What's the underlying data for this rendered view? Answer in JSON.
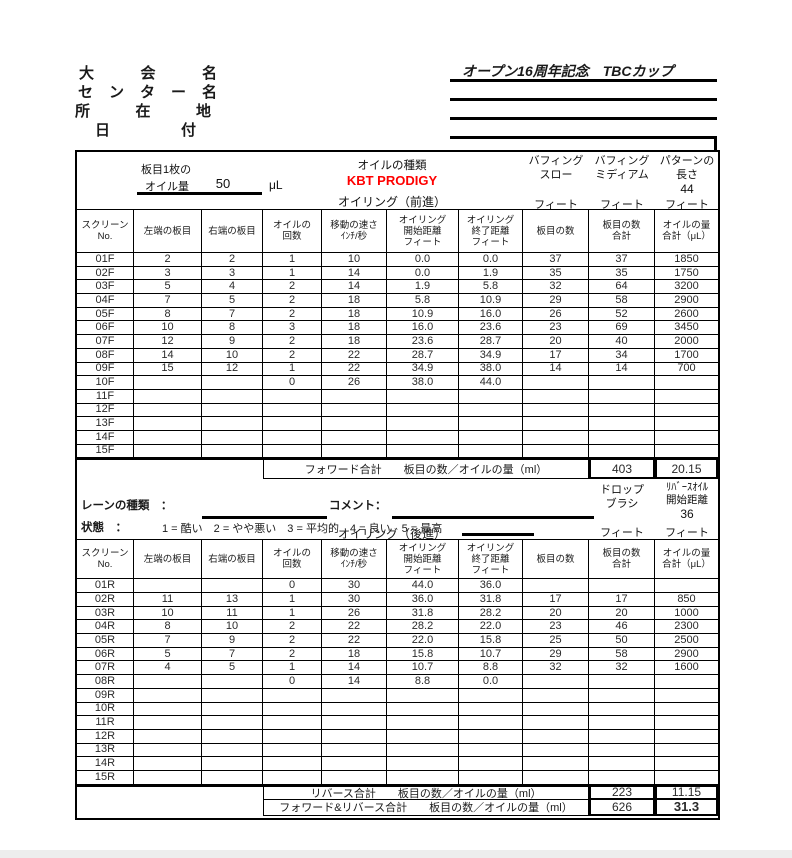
{
  "header": {
    "fields": [
      {
        "label": "大 会 名",
        "value": "オープン16周年記念　TBCカップ"
      },
      {
        "label": "セ ン タ ー 名",
        "value": ""
      },
      {
        "label": "所 在 地",
        "value": ""
      },
      {
        "label": "日 付",
        "value": ""
      }
    ]
  },
  "sheet": {
    "board_oil": {
      "line1": "板目1枚の",
      "line2": "オイル量",
      "value": "50",
      "unit": "μL"
    },
    "oil_type_label": "オイルの種類",
    "oil_type_value": "KBT PRODIGY",
    "forward_title": "オイリング（前進）",
    "reverse_title": "オイリング（後進）",
    "buffing": [
      {
        "title": "バフィング\nスロー",
        "value": "",
        "unit": "フィート"
      },
      {
        "title": "バフィング\nミディアム",
        "value": "",
        "unit": "フィート"
      },
      {
        "title": "パターンの\n長さ",
        "value": "44",
        "unit": "フィート"
      }
    ],
    "columns": [
      "スクリーン\nNo.",
      "左端の板目",
      "右端の板目",
      "オイルの\n回数",
      "移動の速さ\nｲﾝﾁ/秒",
      "オイリング\n開始距離\nフィート",
      "オイリング\n終了距離\nフィート",
      "板目の数",
      "板目の数\n合計",
      "オイルの量\n合計（μL）"
    ],
    "forward_rows": [
      [
        "01F",
        "2",
        "2",
        "1",
        "10",
        "0.0",
        "0.0",
        "37",
        "37",
        "1850"
      ],
      [
        "02F",
        "3",
        "3",
        "1",
        "14",
        "0.0",
        "1.9",
        "35",
        "35",
        "1750"
      ],
      [
        "03F",
        "5",
        "4",
        "2",
        "14",
        "1.9",
        "5.8",
        "32",
        "64",
        "3200"
      ],
      [
        "04F",
        "7",
        "5",
        "2",
        "18",
        "5.8",
        "10.9",
        "29",
        "58",
        "2900"
      ],
      [
        "05F",
        "8",
        "7",
        "2",
        "18",
        "10.9",
        "16.0",
        "26",
        "52",
        "2600"
      ],
      [
        "06F",
        "10",
        "8",
        "3",
        "18",
        "16.0",
        "23.6",
        "23",
        "69",
        "3450"
      ],
      [
        "07F",
        "12",
        "9",
        "2",
        "18",
        "23.6",
        "28.7",
        "20",
        "40",
        "2000"
      ],
      [
        "08F",
        "14",
        "10",
        "2",
        "22",
        "28.7",
        "34.9",
        "17",
        "34",
        "1700"
      ],
      [
        "09F",
        "15",
        "12",
        "1",
        "22",
        "34.9",
        "38.0",
        "14",
        "14",
        "700"
      ],
      [
        "10F",
        "",
        "",
        "0",
        "26",
        "38.0",
        "44.0",
        "",
        "",
        ""
      ],
      [
        "11F",
        "",
        "",
        "",
        "",
        "",
        "",
        "",
        "",
        ""
      ],
      [
        "12F",
        "",
        "",
        "",
        "",
        "",
        "",
        "",
        "",
        ""
      ],
      [
        "13F",
        "",
        "",
        "",
        "",
        "",
        "",
        "",
        "",
        ""
      ],
      [
        "14F",
        "",
        "",
        "",
        "",
        "",
        "",
        "",
        "",
        ""
      ],
      [
        "15F",
        "",
        "",
        "",
        "",
        "",
        "",
        "",
        "",
        ""
      ]
    ],
    "reverse_rows": [
      [
        "01R",
        "",
        "",
        "0",
        "30",
        "44.0",
        "36.0",
        "",
        "",
        ""
      ],
      [
        "02R",
        "11",
        "13",
        "1",
        "30",
        "36.0",
        "31.8",
        "17",
        "17",
        "850"
      ],
      [
        "03R",
        "10",
        "11",
        "1",
        "26",
        "31.8",
        "28.2",
        "20",
        "20",
        "1000"
      ],
      [
        "04R",
        "8",
        "10",
        "2",
        "22",
        "28.2",
        "22.0",
        "23",
        "46",
        "2300"
      ],
      [
        "05R",
        "7",
        "9",
        "2",
        "22",
        "22.0",
        "15.8",
        "25",
        "50",
        "2500"
      ],
      [
        "06R",
        "5",
        "7",
        "2",
        "18",
        "15.8",
        "10.7",
        "29",
        "58",
        "2900"
      ],
      [
        "07R",
        "4",
        "5",
        "1",
        "14",
        "10.7",
        "8.8",
        "32",
        "32",
        "1600"
      ],
      [
        "08R",
        "",
        "",
        "0",
        "14",
        "8.8",
        "0.0",
        "",
        "",
        ""
      ],
      [
        "09R",
        "",
        "",
        "",
        "",
        "",
        "",
        "",
        "",
        ""
      ],
      [
        "10R",
        "",
        "",
        "",
        "",
        "",
        "",
        "",
        "",
        ""
      ],
      [
        "11R",
        "",
        "",
        "",
        "",
        "",
        "",
        "",
        "",
        ""
      ],
      [
        "12R",
        "",
        "",
        "",
        "",
        "",
        "",
        "",
        "",
        ""
      ],
      [
        "13R",
        "",
        "",
        "",
        "",
        "",
        "",
        "",
        "",
        ""
      ],
      [
        "14R",
        "",
        "",
        "",
        "",
        "",
        "",
        "",
        "",
        ""
      ],
      [
        "15R",
        "",
        "",
        "",
        "",
        "",
        "",
        "",
        "",
        ""
      ]
    ],
    "forward_total": {
      "label": "フォワード合計　　板目の数／オイルの量（ml）",
      "boards": "403",
      "oil": "20.15"
    },
    "reverse_total": {
      "label": "リバース合計　　板目の数／オイルの量（ml）",
      "boards": "223",
      "oil": "11.15"
    },
    "grand_total": {
      "label": "フォワード&リバース合計　　板目の数／オイルの量（ml）",
      "boards": "626",
      "oil": "31.3"
    },
    "middle": {
      "lane_type_label": "レーンの種類　：",
      "comment_label": "コメント：",
      "condition_label": "状態　：",
      "condition_scale": "1 = 酷い　2 = やや悪い　3 = 平均的　4 = 良い　5 = 最高",
      "drop_brush_title": "ドロップ\nブラシ",
      "drop_brush_unit": "フィート",
      "reverse_oil_title": "ﾘﾊﾞｰｽｵｲﾙ\n開始距離",
      "reverse_oil_value": "36",
      "reverse_oil_unit": "フィート"
    },
    "colors": {
      "oil_type": "#ff0000",
      "line": "#000000"
    }
  }
}
